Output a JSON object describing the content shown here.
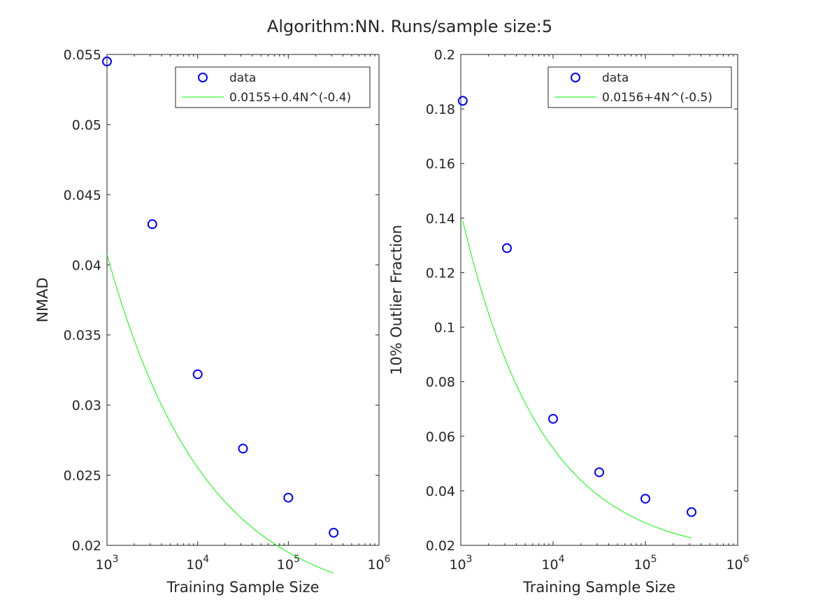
{
  "figure": {
    "title": "Algorithm:NN. Runs/sample size:5"
  },
  "chart_data": [
    {
      "type": "scatter",
      "xlabel": "Training Sample Size",
      "ylabel": "NMAD",
      "x_scale": "log",
      "xlim": [
        1000,
        1000000
      ],
      "ylim": [
        0.02,
        0.055
      ],
      "x_ticks": [
        {
          "value": 1000,
          "base": "10",
          "exp": "3"
        },
        {
          "value": 10000,
          "base": "10",
          "exp": "4"
        },
        {
          "value": 100000,
          "base": "10",
          "exp": "5"
        },
        {
          "value": 1000000,
          "base": "10",
          "exp": "6"
        }
      ],
      "y_ticks": [
        {
          "value": 0.02,
          "label": "0.02"
        },
        {
          "value": 0.025,
          "label": "0.025"
        },
        {
          "value": 0.03,
          "label": "0.03"
        },
        {
          "value": 0.035,
          "label": "0.035"
        },
        {
          "value": 0.04,
          "label": "0.04"
        },
        {
          "value": 0.045,
          "label": "0.045"
        },
        {
          "value": 0.05,
          "label": "0.05"
        },
        {
          "value": 0.055,
          "label": "0.055"
        }
      ],
      "grid": false,
      "legend_position": "top-right",
      "series": [
        {
          "name": "data",
          "kind": "markers",
          "marker": "circle",
          "color": "#0000ff",
          "x": [
            1000,
            3162,
            10000,
            31623,
            100000,
            316228
          ],
          "y": [
            0.0545,
            0.0429,
            0.0322,
            0.0269,
            0.0234,
            0.0209
          ]
        },
        {
          "name": "0.0155+0.4N^(-0.4)",
          "kind": "line",
          "color": "#00ff00",
          "fit": {
            "a": 0.0155,
            "b": 0.4,
            "c": -0.4
          },
          "x_range": [
            1000,
            316228
          ]
        }
      ]
    },
    {
      "type": "scatter",
      "xlabel": "Training Sample Size",
      "ylabel": "10% Outlier Fraction",
      "x_scale": "log",
      "xlim": [
        1000,
        1000000
      ],
      "ylim": [
        0.02,
        0.2
      ],
      "x_ticks": [
        {
          "value": 1000,
          "base": "10",
          "exp": "3"
        },
        {
          "value": 10000,
          "base": "10",
          "exp": "4"
        },
        {
          "value": 100000,
          "base": "10",
          "exp": "5"
        },
        {
          "value": 1000000,
          "base": "10",
          "exp": "6"
        }
      ],
      "y_ticks": [
        {
          "value": 0.02,
          "label": "0.02"
        },
        {
          "value": 0.04,
          "label": "0.04"
        },
        {
          "value": 0.06,
          "label": "0.06"
        },
        {
          "value": 0.08,
          "label": "0.08"
        },
        {
          "value": 0.1,
          "label": "0.1"
        },
        {
          "value": 0.12,
          "label": "0.12"
        },
        {
          "value": 0.14,
          "label": "0.14"
        },
        {
          "value": 0.16,
          "label": "0.16"
        },
        {
          "value": 0.18,
          "label": "0.18"
        },
        {
          "value": 0.2,
          "label": "0.2"
        }
      ],
      "grid": false,
      "legend_position": "top-right",
      "series": [
        {
          "name": "data",
          "kind": "markers",
          "marker": "circle",
          "color": "#0000ff",
          "x": [
            1050,
            3162,
            10000,
            31623,
            100000,
            316228
          ],
          "y": [
            0.183,
            0.129,
            0.0664,
            0.0468,
            0.0371,
            0.0322
          ]
        },
        {
          "name": "0.0156+4N^(-0.5)",
          "kind": "line",
          "color": "#00ff00",
          "fit": {
            "a": 0.0156,
            "b": 4,
            "c": -0.5
          },
          "x_range": [
            1050,
            316228
          ]
        }
      ]
    }
  ]
}
